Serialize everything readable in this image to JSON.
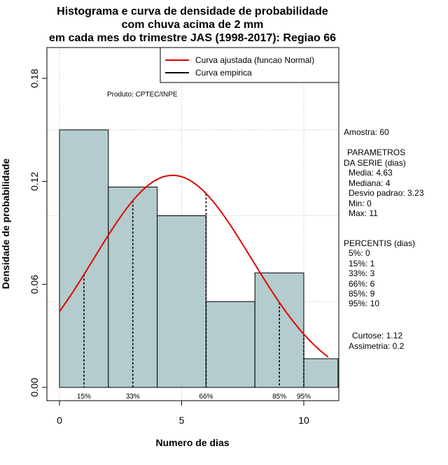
{
  "chart_data": {
    "type": "bar",
    "title_lines": [
      "Histograma e curva de densidade de probabilidade",
      "com chuva acima de 2 mm",
      "em cada mes do trimestre JAS (1998-2017): Regiao 66"
    ],
    "xlabel": "Numero de dias",
    "ylabel": "Densidade de probabilidade",
    "xlim": [
      -0.4,
      11.4
    ],
    "ylim": [
      -0.005,
      0.188
    ],
    "x_ticks": [
      0,
      5,
      10
    ],
    "y_ticks": [
      0.0,
      0.06,
      0.12,
      0.18
    ],
    "y_tick_labels": [
      "0.00",
      "0.06",
      "0.12",
      "0.18"
    ],
    "grid_x": [
      0,
      5,
      10
    ],
    "grid_y": [
      0.05,
      0.1,
      0.15
    ],
    "bins": [
      {
        "start": 0,
        "end": 2,
        "density": 0.15
      },
      {
        "start": 2,
        "end": 4,
        "density": 0.1167
      },
      {
        "start": 4,
        "end": 6,
        "density": 0.1
      },
      {
        "start": 6,
        "end": 8,
        "density": 0.05
      },
      {
        "start": 8,
        "end": 10,
        "density": 0.0667
      },
      {
        "start": 10,
        "end": 11.4,
        "density": 0.0167
      }
    ],
    "bar_color": "#b4cccd",
    "normal_curve": {
      "mean": 4.63,
      "sd": 3.23,
      "x_from": 0,
      "x_to": 11,
      "color": "#e00000"
    },
    "percentiles": [
      {
        "x": 1,
        "label": "15%"
      },
      {
        "x": 3,
        "label": "33%"
      },
      {
        "x": 6,
        "label": "66%"
      },
      {
        "x": 9,
        "label": "85%"
      },
      {
        "x": 10,
        "label": "95%"
      }
    ],
    "legend": {
      "position": "top-right",
      "entries": [
        {
          "label": "Curva ajustada (funcao Normal)",
          "color": "#e00000"
        },
        {
          "label": "Curva empirica",
          "color": "#000000"
        }
      ]
    },
    "annotation": "Produto: CPTEC/INPE"
  },
  "stats_panel": {
    "sample": "Amostra: 60",
    "params_title_1": "PARAMETROS",
    "params_title_2": "DA SERIE (dias)",
    "params": [
      "Media: 4.63",
      "Mediana: 4",
      "Desvio padrao: 3.23",
      "Min: 0",
      "Max: 11"
    ],
    "percentis_title": "PERCENTIS (dias)",
    "percentis": [
      "5%: 0",
      "15%: 1",
      "33%: 3",
      "66%: 6",
      "85%: 9",
      "95%: 10"
    ],
    "curtose": "Curtose: 1.12",
    "assimetria": "Assimetria: 0.2"
  }
}
